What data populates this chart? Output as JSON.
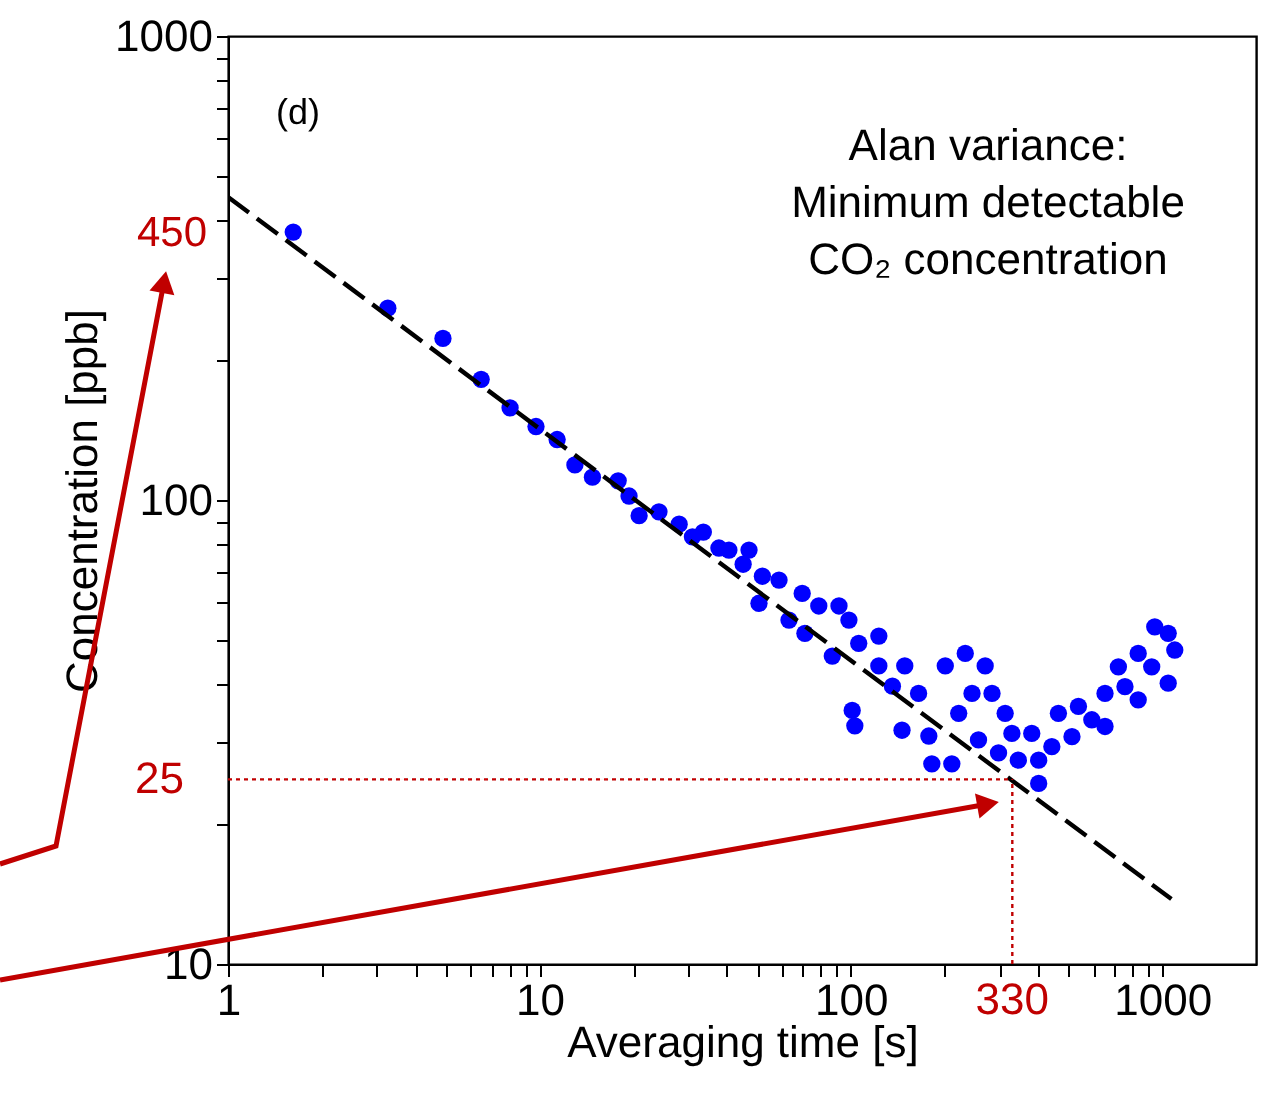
{
  "chart_data": {
    "type": "scatter",
    "xlabel": "Averaging time [s]",
    "ylabel": "Concentration [ppb]",
    "annotations": [
      "(d)",
      "Alan variance:\nMinimum detectable\nCO₂ concentration",
      "450"
    ],
    "log": "xy",
    "grid": false,
    "xlim": [
      1,
      2000
    ],
    "ylim": [
      10,
      1000
    ],
    "xticks": [
      1,
      {
        "value": 2,
        "label": null
      },
      {
        "value": 3,
        "label": null
      },
      {
        "value": 4,
        "label": null
      },
      {
        "value": 5,
        "label": null
      },
      {
        "value": 6,
        "label": null
      },
      {
        "value": 7,
        "label": null
      },
      {
        "value": 8,
        "label": null
      },
      {
        "value": 9,
        "label": null
      },
      10,
      {
        "value": 20,
        "label": null
      },
      {
        "value": 30,
        "label": null
      },
      {
        "value": 40,
        "label": null
      },
      {
        "value": 50,
        "label": null
      },
      {
        "value": 60,
        "label": null
      },
      {
        "value": 70,
        "label": null
      },
      {
        "value": 80,
        "label": null
      },
      {
        "value": 90,
        "label": null
      },
      100,
      {
        "value": 200,
        "label": null
      },
      {
        "value": 300,
        "label": null
      },
      {
        "value": 400,
        "label": null
      },
      {
        "value": 500,
        "label": null
      },
      {
        "value": 600,
        "label": null
      },
      {
        "value": 700,
        "label": null
      },
      {
        "value": 800,
        "label": null
      },
      {
        "value": 900,
        "label": null
      },
      1000
    ],
    "yticks": [
      10,
      {
        "value": 20,
        "label": null
      },
      {
        "value": 30,
        "label": null
      },
      {
        "value": 40,
        "label": null
      },
      {
        "value": 50,
        "label": null
      },
      {
        "value": 60,
        "label": null
      },
      {
        "value": 70,
        "label": null
      },
      {
        "value": 80,
        "label": null
      },
      {
        "value": 90,
        "label": null
      },
      100,
      {
        "value": 200,
        "label": null
      },
      {
        "value": 300,
        "label": null
      },
      {
        "value": 400,
        "label": null
      },
      {
        "value": 500,
        "label": null
      },
      {
        "value": 600,
        "label": null
      },
      {
        "value": 700,
        "label": null
      },
      {
        "value": 800,
        "label": null
      },
      {
        "value": 900,
        "label": null
      },
      1000
    ],
    "ref_lines": [
      {
        "axis": "y",
        "value": 25,
        "label": "25",
        "color": "#c00000",
        "line_style": "dotted"
      },
      {
        "axis": "x",
        "value": 330,
        "label": "330",
        "color": "#c00000",
        "line_style": "dotted"
      }
    ],
    "series": [
      {
        "color": "#0000ff",
        "marker": "circle",
        "x": [
          1.62,
          3.26,
          4.9,
          6.5,
          8.05,
          9.75,
          11.4,
          13,
          14.8,
          17.9,
          19.4,
          20.9,
          24.2,
          28.1,
          31,
          33.6,
          37.7,
          40.6,
          47.1,
          45.1,
          52,
          58.8,
          50.7,
          69.8,
          63.3,
          78.9,
          91.6,
          98.6,
          71.2,
          87.2,
          106,
          123,
          101,
          103,
          123,
          136,
          149,
          146,
          165,
          178,
          182,
          211,
          201,
          233,
          270,
          245,
          222,
          257,
          284,
          313,
          329,
          298,
          345,
          401,
          401,
          381,
          442,
          464,
          538,
          513,
          594,
          655,
          655,
          723,
          759,
          837,
          837,
          946,
          925,
          1045,
          1097,
          1045
        ],
        "values": [
          378,
          259,
          223,
          182,
          158,
          144,
          135,
          119,
          112,
          110,
          102,
          92.5,
          94.3,
          88.7,
          83.3,
          85.3,
          78.8,
          78,
          78,
          72.7,
          68.5,
          67.2,
          59.9,
          62.9,
          55.1,
          59.1,
          59.1,
          55.1,
          51.6,
          46.1,
          49.1,
          50.9,
          35.2,
          32.6,
          43.9,
          39.7,
          43.9,
          31.9,
          38.3,
          31,
          27,
          27,
          43.9,
          46.7,
          43.9,
          38.3,
          34.7,
          30.4,
          38.3,
          34.7,
          31.4,
          28.5,
          27.5,
          24.5,
          27.5,
          31.4,
          29.4,
          34.7,
          35.9,
          30.9,
          33.6,
          38.3,
          32.5,
          43.7,
          39.6,
          46.7,
          37.1,
          53.3,
          43.7,
          51.6,
          47.5,
          40.3
        ]
      },
      {
        "type": "line",
        "color": "#000000",
        "line_style": "dashed",
        "x": [
          1,
          1070
        ],
        "values": [
          450,
          13.8
        ]
      }
    ]
  }
}
